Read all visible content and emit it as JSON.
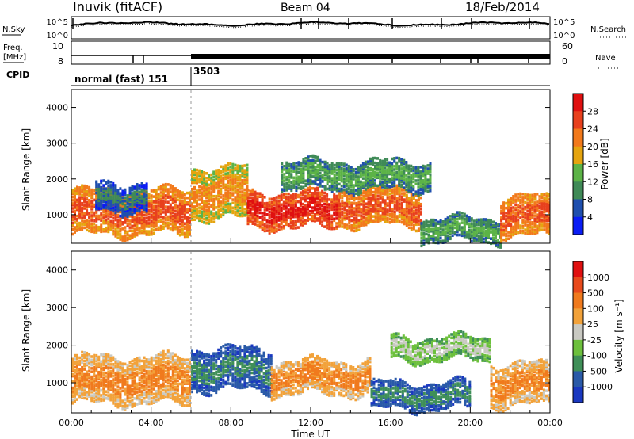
{
  "header": {
    "station": "Inuvik (fitACF)",
    "beam": "Beam 04",
    "date": "18/Feb/2014"
  },
  "strip_labels": {
    "nsky": "N.Sky",
    "nsearch": "N.Search",
    "freq_line1": "Freq.",
    "freq_line2": "[MHz]",
    "nave": "Nave",
    "cpid": "CPID",
    "noise_ticks_left": [
      "10^5",
      "10^0"
    ],
    "noise_ticks_right": [
      "10^5",
      "10^0"
    ],
    "freq_ticks": [
      "10",
      "8"
    ],
    "nave_ticks": [
      "60",
      "0"
    ]
  },
  "cpid_segments": [
    {
      "label": "normal (fast) 151",
      "start_hour": 0
    },
    {
      "label": "3503",
      "start_hour": 6
    }
  ],
  "chart_data": [
    {
      "type": "heatmap",
      "name": "power",
      "ylabel": "Slant Range [km]",
      "yticks": [
        1000,
        2000,
        3000,
        4000
      ],
      "ylim": [
        200,
        4500
      ],
      "xlim_hours": [
        0,
        24
      ],
      "colorbar": {
        "label": "Power [dB]",
        "ticks": [
          "4",
          "8",
          "12",
          "16",
          "20",
          "24",
          "28"
        ],
        "colors": [
          "#0a1df5",
          "#1f4fae",
          "#3f8a57",
          "#5cb347",
          "#e5a40f",
          "#f2791b",
          "#e8401d",
          "#e01010"
        ]
      },
      "echo_bands": [
        {
          "t": [
            0,
            6
          ],
          "r": [
            450,
            1700
          ],
          "level": 6
        },
        {
          "t": [
            1.2,
            3.8
          ],
          "r": [
            1100,
            1900
          ],
          "level": 2
        },
        {
          "t": [
            6,
            8.8
          ],
          "r": [
            900,
            2300
          ],
          "level": 5
        },
        {
          "t": [
            8.8,
            13.4
          ],
          "r": [
            650,
            1600
          ],
          "level": 7
        },
        {
          "t": [
            13.4,
            17.5
          ],
          "r": [
            700,
            1700
          ],
          "level": 6
        },
        {
          "t": [
            17.5,
            21.5
          ],
          "r": [
            250,
            900
          ],
          "level": 3
        },
        {
          "t": [
            21.5,
            24
          ],
          "r": [
            400,
            1500
          ],
          "level": 6
        },
        {
          "t": [
            10.5,
            18
          ],
          "r": [
            1700,
            2500
          ],
          "level": 3
        }
      ]
    },
    {
      "type": "heatmap",
      "name": "velocity",
      "ylabel": "Slant Range [km]",
      "yticks": [
        1000,
        2000,
        3000,
        4000
      ],
      "ylim": [
        200,
        4500
      ],
      "xlim_hours": [
        0,
        24
      ],
      "colorbar": {
        "label": "Velocity [m s⁻¹]",
        "ticks": [
          "1000",
          "500",
          "100",
          "25",
          "-25",
          "-100",
          "-500",
          "-1000"
        ],
        "colors": [
          "#1a38c0",
          "#2a5aa8",
          "#3f8f58",
          "#6dc03d",
          "#c9c9c2",
          "#f2a23a",
          "#f07a1d",
          "#e84a1c",
          "#e01010"
        ]
      },
      "echo_bands": [
        {
          "t": [
            0,
            6
          ],
          "r": [
            450,
            1700
          ],
          "level": 6
        },
        {
          "t": [
            6,
            10
          ],
          "r": [
            800,
            1900
          ],
          "level": 2
        },
        {
          "t": [
            10,
            15
          ],
          "r": [
            700,
            1600
          ],
          "level": 6
        },
        {
          "t": [
            15,
            20
          ],
          "r": [
            300,
            1000
          ],
          "level": 2
        },
        {
          "t": [
            16,
            21
          ],
          "r": [
            1600,
            2200
          ],
          "level": 4
        },
        {
          "t": [
            21,
            24
          ],
          "r": [
            400,
            1500
          ],
          "level": 6
        }
      ]
    }
  ],
  "xaxis": {
    "label": "Time UT",
    "ticks": [
      "00:00",
      "04:00",
      "08:00",
      "12:00",
      "16:00",
      "20:00",
      "00:00"
    ]
  }
}
